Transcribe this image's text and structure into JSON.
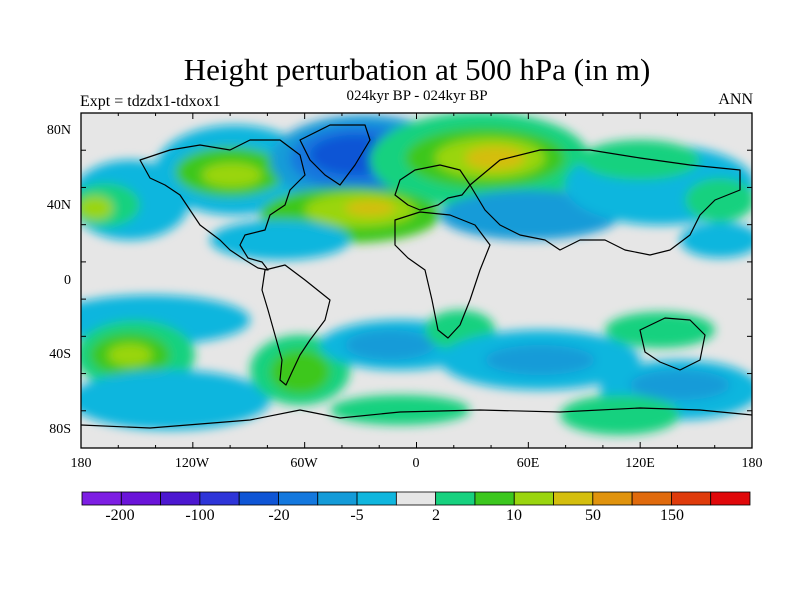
{
  "title": "Height perturbation at 500 hPa (in m)",
  "subtitle": "024kyr BP - 024kyr BP",
  "left_label": "Expt = tdzdx1-tdxox1",
  "right_label": "ANN",
  "lat_ticks": [
    "80N",
    "40N",
    "0",
    "40S",
    "80S"
  ],
  "lon_ticks": [
    "180",
    "120W",
    "60W",
    "0",
    "60E",
    "120E",
    "180"
  ],
  "colorbar": {
    "colors": [
      "#7d1ee3",
      "#6a14d9",
      "#4c17d0",
      "#2e35d8",
      "#0f55d5",
      "#1478de",
      "#149bd8",
      "#10b6de",
      "#e6e6e6",
      "#17d17f",
      "#3cc71e",
      "#9ad50f",
      "#d4be0e",
      "#e0930d",
      "#e06a0c",
      "#df3b0b",
      "#e0080a"
    ],
    "labels": [
      "-200",
      "-100",
      "-20",
      "-5",
      "2",
      "10",
      "50",
      "150"
    ]
  },
  "palette": {
    "neutral": "#e6e6e6",
    "cyan": "#10b6de",
    "blue1": "#149bd8",
    "blue2": "#1478de",
    "blue3": "#0f55d5",
    "green1": "#17d17f",
    "green2": "#3cc71e",
    "yellowgreen": "#9ad50f",
    "yellow": "#d4be0e"
  }
}
